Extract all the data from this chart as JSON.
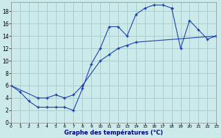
{
  "xlabel": "Graphe des températures (°C)",
  "background_color": "#cceaea",
  "line_color": "#1a3faa",
  "grid_color": "#aacccc",
  "xlim": [
    0,
    23
  ],
  "ylim": [
    0,
    19.5
  ],
  "xticks": [
    0,
    1,
    2,
    3,
    4,
    5,
    6,
    7,
    8,
    9,
    10,
    11,
    12,
    13,
    14,
    15,
    16,
    17,
    18,
    19,
    20,
    21,
    22,
    23
  ],
  "yticks": [
    0,
    2,
    4,
    6,
    8,
    10,
    12,
    14,
    16,
    18
  ],
  "curve1_x": [
    0,
    1,
    2,
    3,
    4,
    5,
    6,
    7,
    8,
    9,
    10,
    11,
    12,
    13,
    14,
    15,
    16,
    17,
    18
  ],
  "curve1_y": [
    6,
    5,
    3.5,
    2.5,
    2.5,
    2.5,
    2.5,
    2,
    5.5,
    9.5,
    12,
    15.5,
    15.5,
    14,
    17.5,
    18.5,
    19,
    19,
    18.5
  ],
  "curve2_x": [
    18,
    19,
    20,
    21,
    22,
    23
  ],
  "curve2_y": [
    18.5,
    12,
    16.5,
    15,
    13.5,
    14
  ],
  "curve3_x": [
    0,
    3,
    4,
    5,
    6,
    7,
    8,
    10,
    11,
    12,
    13,
    14,
    23
  ],
  "curve3_y": [
    6,
    4,
    4,
    4.5,
    4,
    4.5,
    6,
    10,
    11,
    12,
    12.5,
    13,
    14
  ]
}
